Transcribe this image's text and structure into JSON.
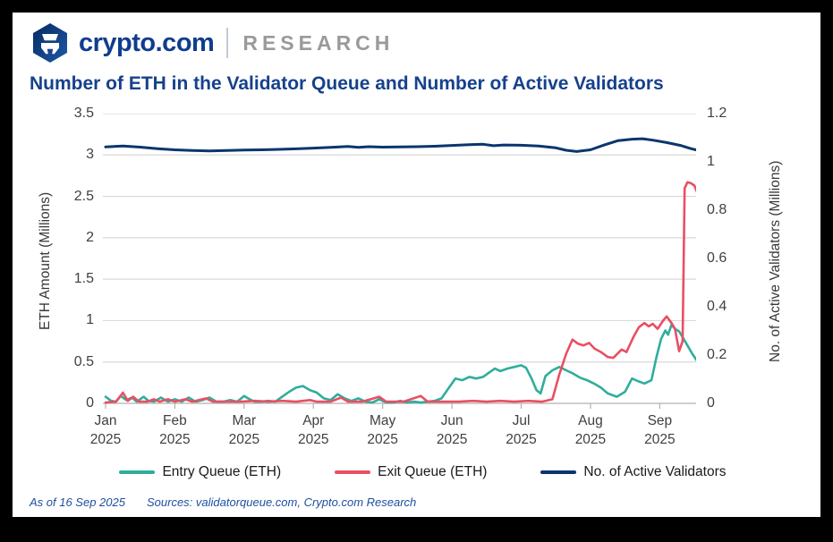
{
  "header": {
    "brand": "crypto.com",
    "research": "RESEARCH"
  },
  "title": "Number of ETH in the Validator Queue and Number of Active Validators",
  "footer": {
    "as_of": "As of 16 Sep 2025",
    "sources": "Sources: validatorqueue.com, Crypto.com Research"
  },
  "colors": {
    "entry_queue": "#2fae9b",
    "exit_queue": "#e94f63",
    "validators": "#0a366d",
    "title_blue": "#16418c",
    "grid": "#d9d9d9",
    "axis_line": "#b0b0b0",
    "brand_blue": "#103d8e",
    "research_gray": "#9a9a9a"
  },
  "chart_data": {
    "type": "line",
    "title": "Number of ETH in the Validator Queue and Number of Active Validators",
    "ylabel_left": "ETH Amount (Millions)",
    "ylabel_right": "No. of Active Validators (Millions)",
    "ylim_left": [
      0,
      3.5
    ],
    "ylim_right": [
      0,
      1.2
    ],
    "grid": true,
    "legend_position": "bottom",
    "x_unit": "months since 1 Jan 2025 (0 = Jan, 8.5 = mid Sep)",
    "x_range": [
      0,
      8.55
    ],
    "months": [
      "Jan",
      "Feb",
      "Mar",
      "Apr",
      "May",
      "Jun",
      "Jul",
      "Aug",
      "Sep"
    ],
    "year_label": "2025",
    "left_ticks": [
      "3.5",
      "3",
      "2.5",
      "2",
      "1.5",
      "1",
      "0.5",
      "0"
    ],
    "left_tick_values": [
      3.5,
      3,
      2.5,
      2,
      1.5,
      1,
      0.5,
      0
    ],
    "right_ticks": [
      "1.2",
      "1",
      "0.8",
      "0.6",
      "0.4",
      "0.2",
      "0"
    ],
    "right_tick_values": [
      1.2,
      1,
      0.8,
      0.6,
      0.4,
      0.2,
      0
    ],
    "series": [
      {
        "name": "Entry Queue (ETH)",
        "axis": "left",
        "color": "#2fae9b",
        "stroke_width": 2.6,
        "points": [
          [
            0.0,
            0.08
          ],
          [
            0.08,
            0.03
          ],
          [
            0.15,
            0.02
          ],
          [
            0.22,
            0.09
          ],
          [
            0.3,
            0.04
          ],
          [
            0.38,
            0.07
          ],
          [
            0.45,
            0.02
          ],
          [
            0.55,
            0.08
          ],
          [
            0.62,
            0.03
          ],
          [
            0.7,
            0.02
          ],
          [
            0.8,
            0.07
          ],
          [
            0.9,
            0.02
          ],
          [
            1.0,
            0.05
          ],
          [
            1.1,
            0.02
          ],
          [
            1.2,
            0.07
          ],
          [
            1.3,
            0.02
          ],
          [
            1.4,
            0.04
          ],
          [
            1.5,
            0.07
          ],
          [
            1.6,
            0.02
          ],
          [
            1.7,
            0.02
          ],
          [
            1.8,
            0.04
          ],
          [
            1.9,
            0.02
          ],
          [
            2.0,
            0.09
          ],
          [
            2.08,
            0.05
          ],
          [
            2.15,
            0.02
          ],
          [
            2.25,
            0.02
          ],
          [
            2.35,
            0.03
          ],
          [
            2.45,
            0.02
          ],
          [
            2.55,
            0.08
          ],
          [
            2.65,
            0.14
          ],
          [
            2.75,
            0.19
          ],
          [
            2.85,
            0.21
          ],
          [
            2.95,
            0.16
          ],
          [
            3.05,
            0.13
          ],
          [
            3.15,
            0.06
          ],
          [
            3.25,
            0.04
          ],
          [
            3.35,
            0.11
          ],
          [
            3.45,
            0.06
          ],
          [
            3.55,
            0.03
          ],
          [
            3.65,
            0.06
          ],
          [
            3.75,
            0.02
          ],
          [
            3.85,
            0.01
          ],
          [
            3.95,
            0.05
          ],
          [
            4.05,
            0.01
          ],
          [
            4.15,
            0.01
          ],
          [
            4.25,
            0.03
          ],
          [
            4.35,
            0.01
          ],
          [
            4.45,
            0.02
          ],
          [
            4.55,
            0.01
          ],
          [
            4.65,
            0.02
          ],
          [
            4.75,
            0.03
          ],
          [
            4.85,
            0.06
          ],
          [
            4.95,
            0.18
          ],
          [
            5.05,
            0.3
          ],
          [
            5.15,
            0.28
          ],
          [
            5.25,
            0.32
          ],
          [
            5.35,
            0.3
          ],
          [
            5.45,
            0.32
          ],
          [
            5.55,
            0.38
          ],
          [
            5.62,
            0.42
          ],
          [
            5.7,
            0.39
          ],
          [
            5.8,
            0.42
          ],
          [
            5.9,
            0.44
          ],
          [
            6.0,
            0.46
          ],
          [
            6.07,
            0.43
          ],
          [
            6.15,
            0.3
          ],
          [
            6.22,
            0.16
          ],
          [
            6.28,
            0.12
          ],
          [
            6.35,
            0.33
          ],
          [
            6.45,
            0.4
          ],
          [
            6.55,
            0.44
          ],
          [
            6.65,
            0.4
          ],
          [
            6.75,
            0.36
          ],
          [
            6.85,
            0.31
          ],
          [
            6.95,
            0.28
          ],
          [
            7.05,
            0.24
          ],
          [
            7.15,
            0.19
          ],
          [
            7.25,
            0.12
          ],
          [
            7.38,
            0.08
          ],
          [
            7.5,
            0.14
          ],
          [
            7.6,
            0.3
          ],
          [
            7.68,
            0.27
          ],
          [
            7.78,
            0.24
          ],
          [
            7.88,
            0.28
          ],
          [
            7.95,
            0.55
          ],
          [
            8.02,
            0.78
          ],
          [
            8.08,
            0.88
          ],
          [
            8.12,
            0.83
          ],
          [
            8.17,
            0.95
          ],
          [
            8.22,
            0.9
          ],
          [
            8.28,
            0.87
          ],
          [
            8.33,
            0.8
          ],
          [
            8.4,
            0.7
          ],
          [
            8.47,
            0.6
          ],
          [
            8.55,
            0.5
          ]
        ]
      },
      {
        "name": "Exit Queue (ETH)",
        "axis": "left",
        "color": "#e94f63",
        "stroke_width": 2.6,
        "points": [
          [
            0.0,
            0.01
          ],
          [
            0.15,
            0.02
          ],
          [
            0.25,
            0.13
          ],
          [
            0.32,
            0.03
          ],
          [
            0.4,
            0.08
          ],
          [
            0.48,
            0.02
          ],
          [
            0.6,
            0.02
          ],
          [
            0.7,
            0.05
          ],
          [
            0.78,
            0.02
          ],
          [
            0.9,
            0.05
          ],
          [
            1.0,
            0.02
          ],
          [
            1.15,
            0.05
          ],
          [
            1.25,
            0.02
          ],
          [
            1.45,
            0.06
          ],
          [
            1.55,
            0.02
          ],
          [
            1.75,
            0.02
          ],
          [
            1.95,
            0.02
          ],
          [
            2.15,
            0.03
          ],
          [
            2.35,
            0.02
          ],
          [
            2.55,
            0.03
          ],
          [
            2.75,
            0.02
          ],
          [
            2.95,
            0.04
          ],
          [
            3.05,
            0.02
          ],
          [
            3.25,
            0.02
          ],
          [
            3.4,
            0.07
          ],
          [
            3.5,
            0.02
          ],
          [
            3.7,
            0.02
          ],
          [
            3.95,
            0.08
          ],
          [
            4.05,
            0.02
          ],
          [
            4.3,
            0.02
          ],
          [
            4.55,
            0.09
          ],
          [
            4.65,
            0.02
          ],
          [
            4.9,
            0.02
          ],
          [
            5.1,
            0.02
          ],
          [
            5.3,
            0.03
          ],
          [
            5.5,
            0.02
          ],
          [
            5.7,
            0.03
          ],
          [
            5.9,
            0.02
          ],
          [
            6.1,
            0.03
          ],
          [
            6.3,
            0.02
          ],
          [
            6.45,
            0.05
          ],
          [
            6.55,
            0.35
          ],
          [
            6.65,
            0.6
          ],
          [
            6.74,
            0.77
          ],
          [
            6.82,
            0.72
          ],
          [
            6.9,
            0.7
          ],
          [
            6.98,
            0.73
          ],
          [
            7.06,
            0.66
          ],
          [
            7.15,
            0.62
          ],
          [
            7.25,
            0.56
          ],
          [
            7.33,
            0.55
          ],
          [
            7.45,
            0.65
          ],
          [
            7.52,
            0.62
          ],
          [
            7.62,
            0.8
          ],
          [
            7.7,
            0.92
          ],
          [
            7.78,
            0.97
          ],
          [
            7.84,
            0.93
          ],
          [
            7.9,
            0.96
          ],
          [
            7.97,
            0.9
          ],
          [
            8.05,
            1.0
          ],
          [
            8.1,
            1.05
          ],
          [
            8.17,
            0.97
          ],
          [
            8.22,
            0.9
          ],
          [
            8.28,
            0.63
          ],
          [
            8.33,
            0.75
          ],
          [
            8.36,
            2.6
          ],
          [
            8.4,
            2.67
          ],
          [
            8.45,
            2.66
          ],
          [
            8.5,
            2.63
          ],
          [
            8.55,
            2.53
          ]
        ]
      },
      {
        "name": "No. of Active Validators",
        "axis": "right",
        "color": "#0a366d",
        "stroke_width": 3,
        "points": [
          [
            0.0,
            1.062
          ],
          [
            0.25,
            1.066
          ],
          [
            0.5,
            1.061
          ],
          [
            0.75,
            1.055
          ],
          [
            1.0,
            1.05
          ],
          [
            1.25,
            1.047
          ],
          [
            1.5,
            1.045
          ],
          [
            1.75,
            1.047
          ],
          [
            2.0,
            1.049
          ],
          [
            2.25,
            1.05
          ],
          [
            2.5,
            1.052
          ],
          [
            2.75,
            1.054
          ],
          [
            3.0,
            1.057
          ],
          [
            3.25,
            1.06
          ],
          [
            3.5,
            1.064
          ],
          [
            3.65,
            1.06
          ],
          [
            3.8,
            1.063
          ],
          [
            4.0,
            1.061
          ],
          [
            4.25,
            1.062
          ],
          [
            4.5,
            1.063
          ],
          [
            4.75,
            1.065
          ],
          [
            5.0,
            1.068
          ],
          [
            5.25,
            1.071
          ],
          [
            5.45,
            1.073
          ],
          [
            5.6,
            1.067
          ],
          [
            5.75,
            1.07
          ],
          [
            6.0,
            1.069
          ],
          [
            6.25,
            1.066
          ],
          [
            6.5,
            1.058
          ],
          [
            6.65,
            1.048
          ],
          [
            6.8,
            1.043
          ],
          [
            7.0,
            1.05
          ],
          [
            7.2,
            1.07
          ],
          [
            7.4,
            1.088
          ],
          [
            7.6,
            1.094
          ],
          [
            7.75,
            1.096
          ],
          [
            7.9,
            1.09
          ],
          [
            8.1,
            1.08
          ],
          [
            8.3,
            1.068
          ],
          [
            8.45,
            1.055
          ],
          [
            8.55,
            1.048
          ]
        ]
      }
    ]
  }
}
